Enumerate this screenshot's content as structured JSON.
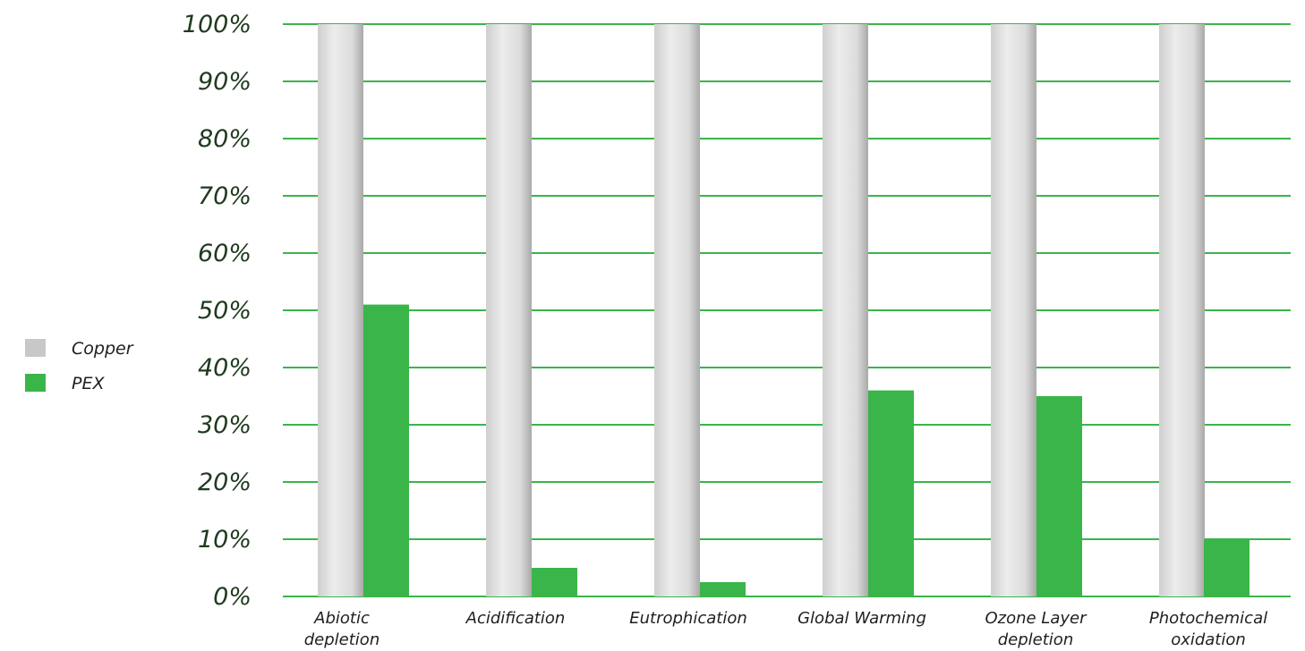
{
  "chart_data": {
    "type": "bar",
    "categories": [
      [
        "Abiotic",
        "depletion"
      ],
      [
        "Acidification"
      ],
      [
        "Eutrophication"
      ],
      [
        "Global Warming"
      ],
      [
        "Ozone Layer",
        "depletion"
      ],
      [
        "Photochemical",
        "oxidation"
      ]
    ],
    "series": [
      {
        "name": "Copper",
        "values": [
          100,
          100,
          100,
          100,
          100,
          100
        ]
      },
      {
        "name": "PEX",
        "values": [
          51,
          5,
          2.5,
          36,
          35,
          10
        ]
      }
    ],
    "ylim": [
      0,
      100
    ],
    "yticks": [
      0,
      10,
      20,
      30,
      40,
      50,
      60,
      70,
      80,
      90,
      100
    ],
    "ytick_labels": [
      "0%",
      "10%",
      "20%",
      "30%",
      "40%",
      "50%",
      "60%",
      "70%",
      "80%",
      "90%",
      "100%"
    ],
    "grid": true,
    "legend_position": "left",
    "colors": {
      "copper": "#d9d9d9",
      "pex": "#3ab54a",
      "grid": "#3ab54a"
    }
  }
}
